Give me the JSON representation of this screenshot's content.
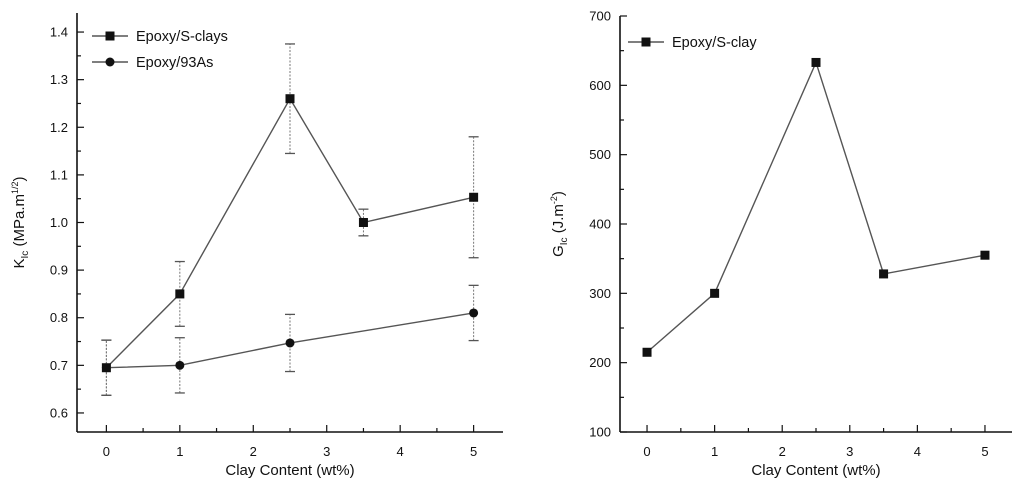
{
  "chart_data": [
    {
      "type": "line",
      "xlabel": "Clay Content (wt%)",
      "ylabel_main": "K",
      "ylabel_sub": "Ic",
      "ylabel_rest": " (MPa.m",
      "ylabel_sup": "1/2",
      "ylabel_end": ")",
      "xlim": [
        -0.4,
        5.4
      ],
      "ylim": [
        0.56,
        1.44
      ],
      "xticks": [
        0,
        1,
        2,
        3,
        4,
        5
      ],
      "xtick_labels": [
        "0",
        "1",
        "2",
        "3",
        "4",
        "5"
      ],
      "yticks": [
        0.6,
        0.7,
        0.8,
        0.9,
        1.0,
        1.1,
        1.2,
        1.3,
        1.4
      ],
      "ytick_labels": [
        "0.6",
        "0.7",
        "0.8",
        "0.9",
        "1.0",
        "1.1",
        "1.2",
        "1.3",
        "1.4"
      ],
      "legend_position": "top-left",
      "series": [
        {
          "name": "Epoxy/S-clays",
          "marker": "square",
          "x": [
            0,
            1,
            2.5,
            3.5,
            5
          ],
          "y": [
            0.695,
            0.85,
            1.26,
            1.0,
            1.053
          ],
          "err": [
            0.058,
            0.068,
            0.115,
            0.028,
            0.127
          ]
        },
        {
          "name": "Epoxy/93As",
          "marker": "circle",
          "x": [
            0,
            1,
            2.5,
            5
          ],
          "y": [
            0.695,
            0.7,
            0.747,
            0.81
          ],
          "err": [
            0.058,
            0.058,
            0.06,
            0.058
          ]
        }
      ]
    },
    {
      "type": "line",
      "xlabel": "Clay Content (wt%)",
      "ylabel_main": "G",
      "ylabel_sub": "Ic",
      "ylabel_rest": " (J.m",
      "ylabel_sup": "-2",
      "ylabel_end": ")",
      "xlim": [
        -0.4,
        5.4
      ],
      "ylim": [
        100,
        700
      ],
      "xticks": [
        0,
        1,
        2,
        3,
        4,
        5
      ],
      "xtick_labels": [
        "0",
        "1",
        "2",
        "3",
        "4",
        "5"
      ],
      "yticks": [
        100,
        200,
        300,
        400,
        500,
        600,
        700
      ],
      "ytick_labels": [
        "100",
        "200",
        "300",
        "400",
        "500",
        "600",
        "700"
      ],
      "legend_position": "top-left",
      "series": [
        {
          "name": "Epoxy/S-clay",
          "marker": "square",
          "x": [
            0,
            1,
            2.5,
            3.5,
            5
          ],
          "y": [
            215,
            300,
            633,
            328,
            355
          ]
        }
      ]
    }
  ]
}
